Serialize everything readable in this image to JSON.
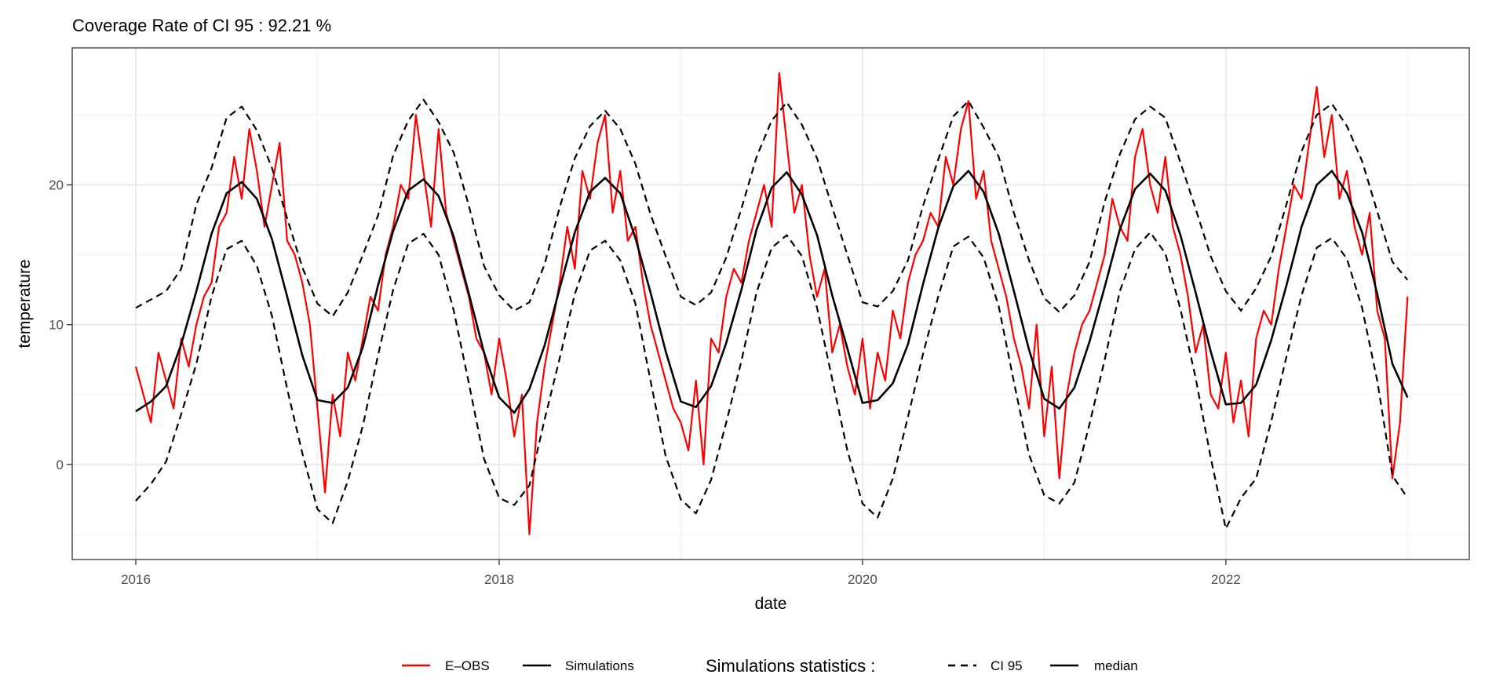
{
  "chart_data": {
    "type": "line",
    "title": "Coverage Rate of CI 95 : 92.21 %",
    "xlabel": "date",
    "ylabel": "temperature",
    "xlim": [
      2015.65,
      2023.34
    ],
    "ylim": [
      -6.8,
      29.8
    ],
    "x_ticks": [
      2016,
      2018,
      2020,
      2022
    ],
    "x_tick_labels": [
      "2016",
      "2018",
      "2020",
      "2022"
    ],
    "y_ticks": [
      0,
      10,
      20
    ],
    "y_tick_labels": [
      "0",
      "10",
      "20"
    ],
    "grid": true,
    "legend": {
      "placement": "bottom",
      "group1": [
        {
          "label": "E–OBS",
          "color": "#ff0000",
          "style": "solid"
        },
        {
          "label": "Simulations",
          "color": "#000000",
          "style": "solid"
        }
      ],
      "group2_title": "Simulations statistics :",
      "group2": [
        {
          "label": "CI 95",
          "color": "#000000",
          "style": "dashed"
        },
        {
          "label": "median",
          "color": "#000000",
          "style": "solid"
        }
      ]
    },
    "series": [
      {
        "name": "CI 95 upper",
        "color": "#000000",
        "style": "dashed",
        "x_start": "2016-01",
        "x_step_months": 1,
        "values": [
          11.2,
          11.8,
          12.4,
          14.0,
          18.6,
          21.2,
          24.8,
          25.6,
          23.9,
          21.2,
          17.6,
          14.1,
          11.5,
          10.6,
          12.3,
          15.0,
          17.8,
          22.1,
          24.6,
          26.1,
          24.5,
          22.3,
          18.5,
          14.2,
          12.1,
          11.0,
          11.6,
          14.3,
          18.4,
          21.9,
          24.2,
          25.3,
          24.0,
          21.5,
          17.9,
          14.9,
          12.0,
          11.4,
          12.3,
          14.8,
          18.3,
          22.0,
          24.6,
          25.9,
          24.3,
          21.9,
          18.4,
          15.0,
          11.6,
          11.3,
          12.4,
          14.6,
          18.5,
          21.8,
          24.9,
          26.0,
          24.1,
          22.0,
          18.0,
          14.6,
          11.9,
          10.9,
          12.1,
          14.5,
          18.8,
          22.2,
          24.7,
          25.6,
          24.8,
          21.6,
          18.3,
          14.9,
          12.4,
          11.0,
          12.6,
          14.9,
          18.6,
          22.4,
          25.0,
          25.8,
          24.2,
          21.7,
          18.1,
          14.5,
          13.2
        ]
      },
      {
        "name": "CI 95 lower",
        "color": "#000000",
        "style": "dashed",
        "x_start": "2016-01",
        "x_step_months": 1,
        "values": [
          -2.6,
          -1.4,
          0.2,
          3.6,
          7.2,
          12.0,
          15.4,
          16.0,
          14.2,
          10.6,
          5.4,
          0.8,
          -3.2,
          -4.2,
          -1.2,
          2.8,
          7.8,
          12.5,
          15.8,
          16.5,
          15.0,
          11.0,
          5.8,
          0.4,
          -2.4,
          -2.9,
          -1.5,
          3.2,
          7.6,
          12.2,
          15.3,
          16.0,
          14.6,
          11.5,
          6.0,
          0.6,
          -2.5,
          -3.5,
          -1.1,
          3.0,
          7.4,
          12.3,
          15.5,
          16.4,
          14.9,
          11.2,
          6.1,
          1.0,
          -2.8,
          -3.8,
          -1.0,
          3.4,
          7.9,
          12.0,
          15.6,
          16.3,
          14.8,
          11.3,
          5.9,
          0.7,
          -2.2,
          -2.8,
          -1.3,
          2.9,
          7.5,
          12.4,
          15.4,
          16.6,
          15.1,
          11.1,
          6.2,
          0.5,
          -4.6,
          -2.4,
          -1.0,
          3.1,
          7.7,
          12.1,
          15.5,
          16.2,
          14.7,
          11.2,
          6.0,
          -0.8,
          -2.4
        ]
      },
      {
        "name": "median",
        "color": "#000000",
        "style": "solid",
        "x_start": "2016-01",
        "x_step_months": 1,
        "values": [
          3.8,
          4.5,
          5.6,
          8.6,
          12.4,
          16.5,
          19.4,
          20.2,
          19.0,
          16.1,
          12.0,
          7.8,
          4.6,
          4.4,
          5.5,
          8.4,
          12.8,
          16.7,
          19.6,
          20.4,
          19.2,
          16.3,
          12.2,
          8.0,
          4.8,
          3.7,
          5.4,
          8.5,
          12.6,
          16.6,
          19.5,
          20.5,
          19.4,
          16.2,
          12.3,
          8.1,
          4.5,
          4.1,
          5.6,
          8.7,
          12.5,
          16.8,
          19.8,
          20.9,
          19.3,
          16.4,
          12.1,
          8.3,
          4.4,
          4.6,
          5.8,
          8.6,
          12.9,
          16.9,
          19.9,
          21.0,
          19.5,
          16.5,
          12.4,
          8.2,
          4.7,
          4.0,
          5.5,
          8.8,
          12.7,
          16.8,
          19.7,
          20.8,
          19.6,
          16.4,
          12.3,
          8.1,
          4.3,
          4.4,
          5.7,
          8.9,
          12.8,
          17.0,
          20.0,
          21.0,
          19.4,
          16.6,
          12.2,
          7.2,
          4.8
        ]
      },
      {
        "name": "E–OBS",
        "color": "#ff0000",
        "style": "solid",
        "x_start": "2016-01",
        "x_step_months": 0.5,
        "values": [
          7,
          5,
          3,
          8,
          6,
          4,
          9,
          7,
          10,
          12,
          13,
          17,
          18,
          22,
          19,
          24,
          21,
          17,
          20,
          23,
          16,
          15,
          13,
          10,
          4,
          -2,
          5,
          2,
          8,
          6,
          9,
          12,
          11,
          15,
          17,
          20,
          19,
          25,
          21,
          17,
          24,
          18,
          16,
          14,
          12,
          9,
          8,
          5,
          9,
          6,
          2,
          5,
          -5,
          3,
          7,
          10,
          13,
          17,
          14,
          21,
          19,
          23,
          25,
          18,
          21,
          16,
          17,
          13,
          10,
          8,
          6,
          4,
          3,
          1,
          6,
          0,
          9,
          8,
          12,
          14,
          13,
          16,
          18,
          20,
          17,
          28,
          23,
          18,
          20,
          15,
          12,
          14,
          8,
          10,
          7,
          5,
          9,
          4,
          8,
          6,
          11,
          9,
          13,
          15,
          16,
          18,
          17,
          22,
          20,
          24,
          26,
          19,
          21,
          16,
          14,
          12,
          9,
          7,
          4,
          10,
          2,
          7,
          -1,
          5,
          8,
          10,
          11,
          13,
          15,
          19,
          17,
          16,
          22,
          24,
          20,
          18,
          22,
          17,
          15,
          12,
          8,
          10,
          5,
          4,
          8,
          3,
          6,
          2,
          9,
          11,
          10,
          14,
          17,
          20,
          19,
          23,
          27,
          22,
          25,
          19,
          21,
          17,
          15,
          18,
          11,
          9,
          -1,
          3,
          12
        ]
      }
    ]
  }
}
